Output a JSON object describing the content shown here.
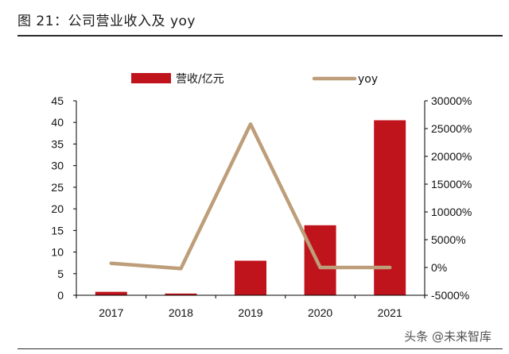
{
  "figure": {
    "title": "图 21：公司营业收入及 yoy",
    "watermark": "头条 @未来智库"
  },
  "colors": {
    "bar": "#C0141D",
    "line": "#BE9E7A",
    "axis": "#000000"
  },
  "chart_data": {
    "type": "bar",
    "categories": [
      "2017",
      "2018",
      "2019",
      "2020",
      "2021"
    ],
    "series": [
      {
        "name": "营收/亿元",
        "type": "bar",
        "axis": "left",
        "values": [
          0.8,
          0.4,
          8.0,
          16.2,
          40.5
        ]
      },
      {
        "name": "yoy",
        "type": "line",
        "axis": "right",
        "values": [
          750,
          -200,
          25800,
          0,
          0
        ]
      }
    ],
    "y_left": {
      "ylim": [
        0,
        45
      ],
      "ticks": [
        "0",
        "5",
        "10",
        "15",
        "20",
        "25",
        "30",
        "35",
        "40",
        "45"
      ]
    },
    "y_right": {
      "ylim": [
        -5000,
        30000
      ],
      "ticks": [
        "-5000%",
        "0%",
        "5000%",
        "10000%",
        "15000%",
        "20000%",
        "25000%",
        "30000%"
      ]
    },
    "legend_position": "top",
    "grid": false
  }
}
